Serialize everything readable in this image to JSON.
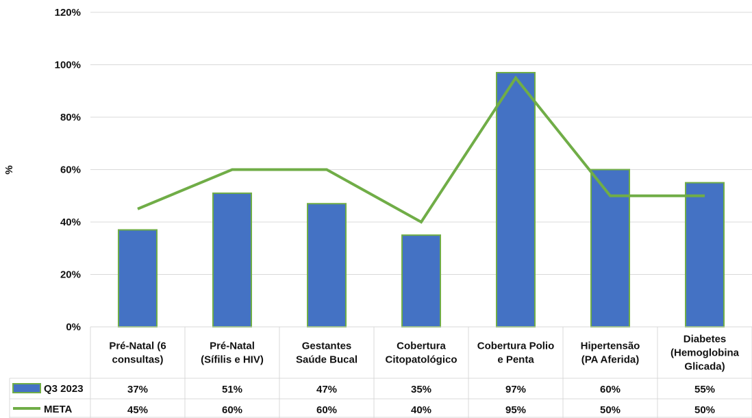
{
  "chart_data": {
    "type": "bar",
    "ylabel": "%",
    "ylim": [
      0,
      120
    ],
    "yticks": [
      0,
      20,
      40,
      60,
      80,
      100,
      120
    ],
    "ytick_labels": [
      "0%",
      "20%",
      "40%",
      "60%",
      "80%",
      "100%",
      "120%"
    ],
    "categories": [
      [
        "Pré-Natal (6",
        "consultas)"
      ],
      [
        "Pré-Natal",
        "(Sífilis e HIV)"
      ],
      [
        "Gestantes",
        "Saúde Bucal"
      ],
      [
        "Cobertura",
        "Citopatológico"
      ],
      [
        "Cobertura Polio",
        "e Penta"
      ],
      [
        "Hipertensão",
        "(PA Aferida)"
      ],
      [
        "Diabetes",
        "(Hemoglobina",
        "Glicada)"
      ]
    ],
    "grid": true,
    "legend": "data table below chart",
    "series": [
      {
        "name": "Q3 2023",
        "kind": "bar",
        "color": "#4472C4",
        "edge_color": "#70AD47",
        "values": [
          37,
          51,
          47,
          35,
          97,
          60,
          55
        ],
        "labels": [
          "37%",
          "51%",
          "47%",
          "35%",
          "97%",
          "60%",
          "55%"
        ]
      },
      {
        "name": "META",
        "kind": "line",
        "color": "#70AD47",
        "values": [
          45,
          60,
          60,
          40,
          95,
          50,
          50
        ],
        "labels": [
          "45%",
          "60%",
          "60%",
          "40%",
          "95%",
          "50%",
          "50%"
        ]
      }
    ]
  }
}
